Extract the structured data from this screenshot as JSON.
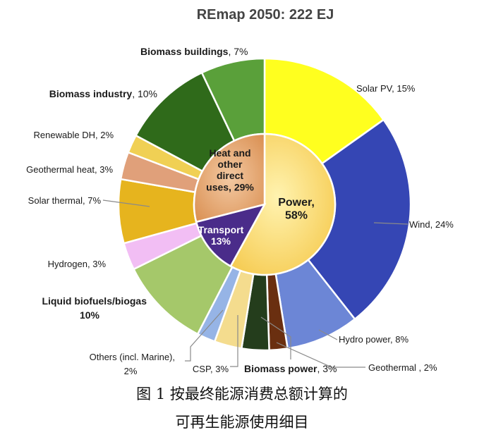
{
  "chart_data": {
    "type": "pie",
    "title": "REmap 2050: 222 EJ",
    "inner_ring": [
      {
        "label": "Power,",
        "label2": "58%",
        "value": 58,
        "color": "#fad65f"
      },
      {
        "label": "Transport",
        "label2": "13%",
        "value": 13,
        "color": "#4a2c8a"
      },
      {
        "label": "Heat and",
        "label2": "other",
        "label3": "direct",
        "label4": "uses, 29%",
        "value": 29,
        "color": "#e3a472"
      }
    ],
    "outer_ring": [
      {
        "label": "Solar PV",
        "pct": ", 15%",
        "value": 15,
        "color": "#ffff1f",
        "bold": false
      },
      {
        "label": "Wind",
        "pct": ", 24%",
        "value": 24,
        "color": "#3546b4",
        "bold": false
      },
      {
        "label": "Hydro power",
        "pct": ", 8%",
        "value": 8,
        "color": "#6c86d6",
        "bold": false
      },
      {
        "label": "Geothermal",
        "pct": " , 2%",
        "value": 2,
        "color": "#6a2f10",
        "bold": false
      },
      {
        "label": "Biomass power",
        "pct": ", 3%",
        "value": 3,
        "color": "#243d1c",
        "bold": true
      },
      {
        "label": "CSP",
        "pct": ", 3%",
        "value": 3,
        "color": "#f4dc8e",
        "bold": false
      },
      {
        "label": "Others (incl. Marine),",
        "pct": "2%",
        "value": 2,
        "color": "#96b4e6",
        "bold": false
      },
      {
        "label": "Liquid biofuels/biogas",
        "pct": ", 10%",
        "value": 10,
        "color": "#a5c86a",
        "bold": true
      },
      {
        "label": "Hydrogen",
        "pct": ", 3%",
        "value": 3,
        "color": "#f2bef4",
        "bold": false
      },
      {
        "label": "Solar thermal",
        "pct": ", 7%",
        "value": 7,
        "color": "#e6b41e",
        "bold": false
      },
      {
        "label": "Geothermal heat",
        "pct": ", 3%",
        "value": 3,
        "color": "#e0a07a",
        "bold": false
      },
      {
        "label": "Renewable DH",
        "pct": ", 2%",
        "value": 2,
        "color": "#f0d054",
        "bold": false
      },
      {
        "label": "Biomass industry",
        "pct": ", 10%",
        "value": 10,
        "color": "#2f6a1a",
        "bold": true
      },
      {
        "label": "Biomass buildings",
        "pct": ", 7%",
        "value": 7,
        "color": "#5aa03a",
        "bold": true
      }
    ]
  },
  "caption": {
    "line1": "图 1    按最终能源消费总额计算的",
    "line2": "可再生能源使用细目"
  }
}
